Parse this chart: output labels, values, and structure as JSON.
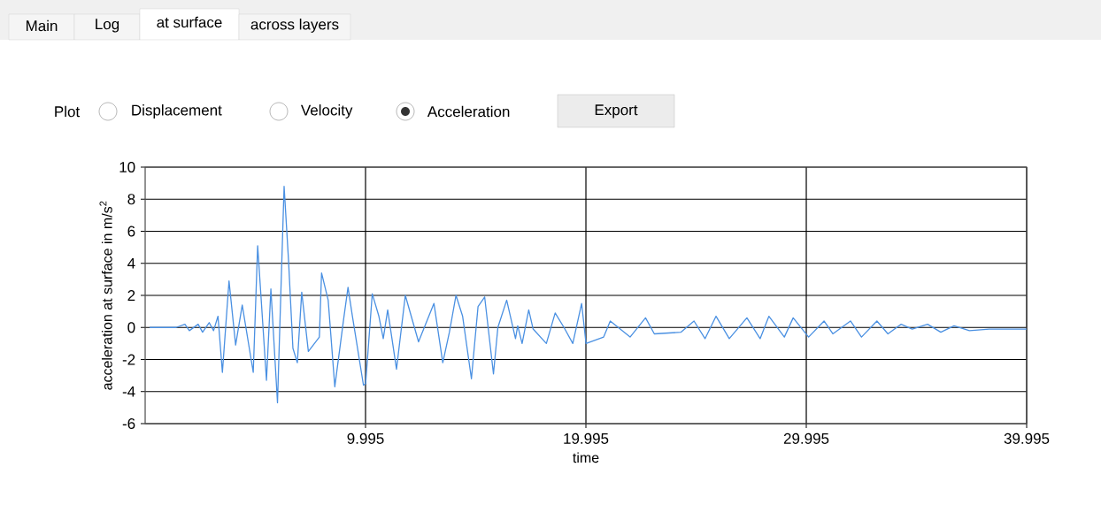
{
  "chart_data": {
    "type": "line",
    "xlabel": "time",
    "ylabel": "acceleration at surface in m/s$^{2}$",
    "annotations": [
      "Main",
      "Log",
      "at surface",
      "across layers",
      "Plot",
      "Displacement",
      "Velocity",
      "Acceleration",
      "Export"
    ],
    "xlim": [
      -0.005,
      39.995
    ],
    "xticks": [
      9.995,
      19.995,
      29.995,
      39.995
    ],
    "ylim": [
      -6,
      10
    ],
    "yticks": [
      -6,
      -4,
      -2,
      0,
      2,
      4,
      6,
      8,
      10
    ],
    "grid": true,
    "marker": "none",
    "line_style": "solid",
    "series": [
      {
        "color": "#4a90e2",
        "x": [
          0.2,
          1.4,
          1.8,
          2.0,
          2.4,
          2.6,
          2.9,
          3.1,
          3.3,
          3.5,
          3.8,
          4.1,
          4.4,
          4.9,
          5.1,
          5.5,
          5.7,
          6.0,
          6.3,
          6.5,
          6.7,
          6.9,
          7.1,
          7.4,
          7.9,
          8.0,
          8.3,
          8.6,
          9.0,
          9.2,
          9.4,
          9.9,
          10.0,
          10.3,
          10.6,
          10.8,
          11.0,
          11.4,
          11.8,
          12.4,
          13.1,
          13.5,
          13.8,
          14.1,
          14.4,
          14.8,
          15.1,
          15.4,
          15.8,
          16.0,
          16.4,
          16.8,
          16.9,
          17.1,
          17.4,
          17.6,
          18.2,
          18.6,
          19.0,
          19.4,
          19.8,
          20.0,
          20.8,
          21.1,
          22.0,
          22.7,
          23.1,
          24.3,
          24.9,
          25.4,
          25.9,
          26.5,
          27.3,
          27.9,
          28.3,
          29.0,
          29.4,
          30.1,
          30.8,
          31.2,
          32.0,
          32.5,
          33.2,
          33.7,
          34.3,
          34.8,
          35.5,
          36.1,
          36.7,
          37.4,
          38.3,
          39.995
        ],
        "values": [
          0,
          0,
          0.2,
          -0.2,
          0.2,
          -0.3,
          0.3,
          -0.2,
          0.7,
          -2.8,
          2.9,
          -1.1,
          1.4,
          -2.8,
          5.1,
          -3.3,
          2.4,
          -4.7,
          8.8,
          4.2,
          -1.3,
          -2.2,
          2.2,
          -1.5,
          -0.6,
          3.4,
          1.7,
          -3.7,
          0.5,
          2.5,
          0.7,
          -3.6,
          -3.5,
          2.1,
          0.7,
          -0.7,
          1.1,
          -2.6,
          2.0,
          -0.9,
          1.5,
          -2.2,
          -0.3,
          2.0,
          0.7,
          -3.2,
          1.3,
          1.9,
          -2.9,
          0,
          1.7,
          -0.7,
          0.1,
          -1.0,
          1.1,
          -0.1,
          -1.0,
          0.9,
          0,
          -1.0,
          1.5,
          -1.0,
          -0.6,
          0.4,
          -0.6,
          0.6,
          -0.4,
          -0.3,
          0.4,
          -0.7,
          0.7,
          -0.7,
          0.6,
          -0.7,
          0.7,
          -0.6,
          0.6,
          -0.6,
          0.4,
          -0.4,
          0.4,
          -0.6,
          0.4,
          -0.4,
          0.2,
          -0.1,
          0.2,
          -0.3,
          0.1,
          -0.2,
          -0.1,
          -0.1
        ]
      }
    ]
  }
}
